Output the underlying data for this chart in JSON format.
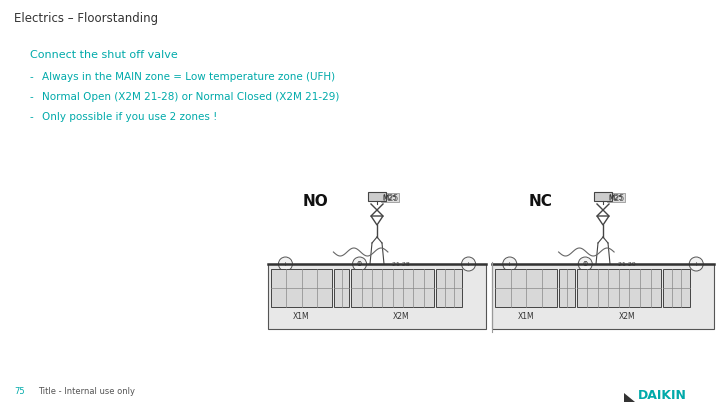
{
  "title": "Electrics – Floorstanding",
  "title_color": "#333333",
  "title_fontsize": 8.5,
  "subtitle": "Connect the shut off valve",
  "subtitle_color": "#00AAAA",
  "subtitle_fontsize": 8,
  "bullet_color": "#00AAAA",
  "bullet_fontsize": 7.5,
  "bullets": [
    "Always in the MAIN zone = Low temperature zone (UFH)",
    "Normal Open (X2M 21-28) or Normal Closed (X2M 21-29)",
    "Only possible if you use 2 zones !"
  ],
  "page_number": "75",
  "footer_text": "Title - Internal use only",
  "footer_color": "#00AAAA",
  "footer_fontsize": 6,
  "daikin_color": "#00AAAA",
  "bg_color": "#FFFFFF",
  "diagram_label_no": "NO",
  "diagram_label_nc": "NC",
  "diagram_sublabel": "M25",
  "diagram_x1m": "X1M",
  "diagram_x2m": "X2M"
}
